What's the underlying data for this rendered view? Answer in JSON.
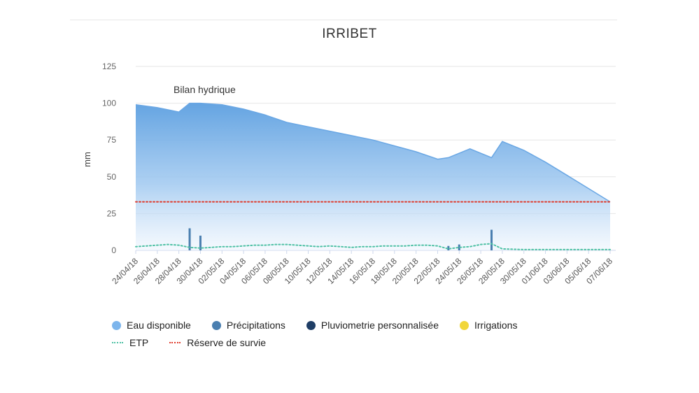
{
  "chart_data": {
    "type": "area",
    "title": "IRRIBET",
    "subtitle": "Bilan hydrique",
    "ylabel": "mm",
    "ylim": [
      0,
      125
    ],
    "yticks": [
      0,
      25,
      50,
      75,
      100,
      125
    ],
    "grid": true,
    "legend_position": "bottom",
    "x_tick_labels": [
      "24/04/18",
      "26/04/18",
      "28/04/18",
      "30/04/18",
      "02/05/18",
      "04/05/18",
      "06/05/18",
      "08/05/18",
      "10/05/18",
      "12/05/18",
      "14/05/18",
      "16/05/18",
      "18/05/18",
      "20/05/18",
      "22/05/18",
      "24/05/18",
      "26/05/18",
      "28/05/18",
      "30/05/18",
      "01/06/18",
      "03/06/18",
      "05/06/18",
      "07/06/18"
    ],
    "series": [
      {
        "name": "Eau disponible",
        "type": "area",
        "color": "#7cb5ec",
        "points": [
          [
            "24/04/18",
            99
          ],
          [
            "26/04/18",
            97
          ],
          [
            "28/04/18",
            94
          ],
          [
            "29/04/18",
            100
          ],
          [
            "30/04/18",
            100
          ],
          [
            "02/05/18",
            99
          ],
          [
            "04/05/18",
            96
          ],
          [
            "06/05/18",
            92
          ],
          [
            "08/05/18",
            87
          ],
          [
            "10/05/18",
            84
          ],
          [
            "12/05/18",
            81
          ],
          [
            "14/05/18",
            78
          ],
          [
            "16/05/18",
            75
          ],
          [
            "18/05/18",
            71
          ],
          [
            "20/05/18",
            67
          ],
          [
            "22/05/18",
            62
          ],
          [
            "23/05/18",
            63
          ],
          [
            "25/05/18",
            69
          ],
          [
            "27/05/18",
            63
          ],
          [
            "28/05/18",
            74
          ],
          [
            "30/05/18",
            68
          ],
          [
            "01/06/18",
            60
          ],
          [
            "03/06/18",
            51
          ],
          [
            "05/06/18",
            42
          ],
          [
            "07/06/18",
            33
          ]
        ]
      },
      {
        "name": "Précipitations",
        "type": "column",
        "color": "#4a7fb0",
        "points": [
          [
            "29/04/18",
            15
          ],
          [
            "30/04/18",
            10
          ],
          [
            "23/05/18",
            3
          ],
          [
            "24/05/18",
            4
          ],
          [
            "27/05/18",
            14
          ]
        ]
      },
      {
        "name": "Pluviometrie personnalisée",
        "type": "column",
        "color": "#1f3e66",
        "points": []
      },
      {
        "name": "Irrigations",
        "type": "column",
        "color": "#f1d63a",
        "points": []
      },
      {
        "name": "ETP",
        "type": "line",
        "style": "dotted",
        "color": "#4fc1a5",
        "points": [
          [
            "24/04/18",
            2.5
          ],
          [
            "25/04/18",
            3
          ],
          [
            "26/04/18",
            3.5
          ],
          [
            "27/04/18",
            4
          ],
          [
            "28/04/18",
            3.5
          ],
          [
            "29/04/18",
            2
          ],
          [
            "30/04/18",
            1.5
          ],
          [
            "01/05/18",
            2
          ],
          [
            "02/05/18",
            2.5
          ],
          [
            "03/05/18",
            2.5
          ],
          [
            "04/05/18",
            3
          ],
          [
            "05/05/18",
            3.5
          ],
          [
            "06/05/18",
            3.5
          ],
          [
            "07/05/18",
            4
          ],
          [
            "08/05/18",
            4
          ],
          [
            "09/05/18",
            3.5
          ],
          [
            "10/05/18",
            3
          ],
          [
            "11/05/18",
            2.5
          ],
          [
            "12/05/18",
            3
          ],
          [
            "13/05/18",
            2.5
          ],
          [
            "14/05/18",
            2
          ],
          [
            "15/05/18",
            2.5
          ],
          [
            "16/05/18",
            2.5
          ],
          [
            "17/05/18",
            3
          ],
          [
            "18/05/18",
            3
          ],
          [
            "19/05/18",
            3
          ],
          [
            "20/05/18",
            3.5
          ],
          [
            "21/05/18",
            3.5
          ],
          [
            "22/05/18",
            3
          ],
          [
            "23/05/18",
            1
          ],
          [
            "24/05/18",
            2
          ],
          [
            "25/05/18",
            2.5
          ],
          [
            "26/05/18",
            4
          ],
          [
            "27/05/18",
            4.5
          ],
          [
            "28/05/18",
            1
          ],
          [
            "30/05/18",
            0.5
          ],
          [
            "01/06/18",
            0.5
          ],
          [
            "03/06/18",
            0.5
          ],
          [
            "05/06/18",
            0.5
          ],
          [
            "07/06/18",
            0.5
          ]
        ]
      },
      {
        "name": "Réserve de survie",
        "type": "line",
        "style": "dotted",
        "color": "#e03b2c",
        "points": [
          [
            "24/04/18",
            33
          ],
          [
            "07/06/18",
            33
          ]
        ]
      }
    ]
  }
}
